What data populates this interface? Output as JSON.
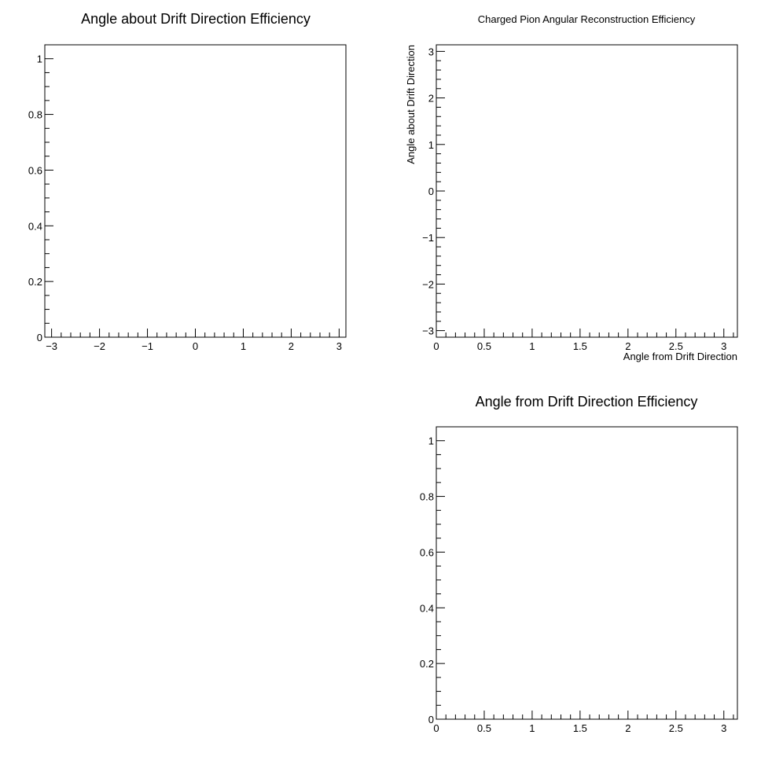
{
  "chart_data": [
    {
      "type": "scatter",
      "title": "Angle about Drift Direction Efficiency",
      "xlabel": "",
      "ylabel": "",
      "xlim": [
        -3.14159,
        3.14159
      ],
      "ylim": [
        0,
        1.05
      ],
      "x_ticks": [
        -3,
        -2,
        -1,
        0,
        1,
        2,
        3
      ],
      "x_tick_labels": [
        "−3",
        "−2",
        "−1",
        "0",
        "1",
        "2",
        "3"
      ],
      "y_ticks": [
        0,
        0.2,
        0.4,
        0.6,
        0.8,
        1
      ],
      "y_tick_labels": [
        "0",
        "0.2",
        "0.4",
        "0.6",
        "0.8",
        "1"
      ],
      "x_minor_step": 0.2,
      "y_minor_step": 0.05,
      "series": [],
      "grid": false
    },
    {
      "type": "heatmap",
      "title": "Charged Pion Angular Reconstruction Efficiency",
      "xlabel": "Angle from Drift Direction",
      "ylabel": "Angle about Drift Direction",
      "xlim": [
        0,
        3.14159
      ],
      "ylim": [
        -3.14159,
        3.14159
      ],
      "x_ticks": [
        0,
        0.5,
        1,
        1.5,
        2,
        2.5,
        3
      ],
      "x_tick_labels": [
        "0",
        "0.5",
        "1",
        "1.5",
        "2",
        "2.5",
        "3"
      ],
      "y_ticks": [
        -3,
        -2,
        -1,
        0,
        1,
        2,
        3
      ],
      "y_tick_labels": [
        "−3",
        "−2",
        "−1",
        "0",
        "1",
        "2",
        "3"
      ],
      "x_minor_step": 0.1,
      "y_minor_step": 0.2,
      "series": [],
      "grid": false
    },
    {
      "type": "scatter",
      "title": "Angle from Drift Direction Efficiency",
      "xlabel": "",
      "ylabel": "",
      "xlim": [
        0,
        3.14159
      ],
      "ylim": [
        0,
        1.05
      ],
      "x_ticks": [
        0,
        0.5,
        1,
        1.5,
        2,
        2.5,
        3
      ],
      "x_tick_labels": [
        "0",
        "0.5",
        "1",
        "1.5",
        "2",
        "2.5",
        "3"
      ],
      "y_ticks": [
        0,
        0.2,
        0.4,
        0.6,
        0.8,
        1
      ],
      "y_tick_labels": [
        "0",
        "0.2",
        "0.4",
        "0.6",
        "0.8",
        "1"
      ],
      "x_minor_step": 0.1,
      "y_minor_step": 0.05,
      "series": [],
      "grid": false
    }
  ]
}
